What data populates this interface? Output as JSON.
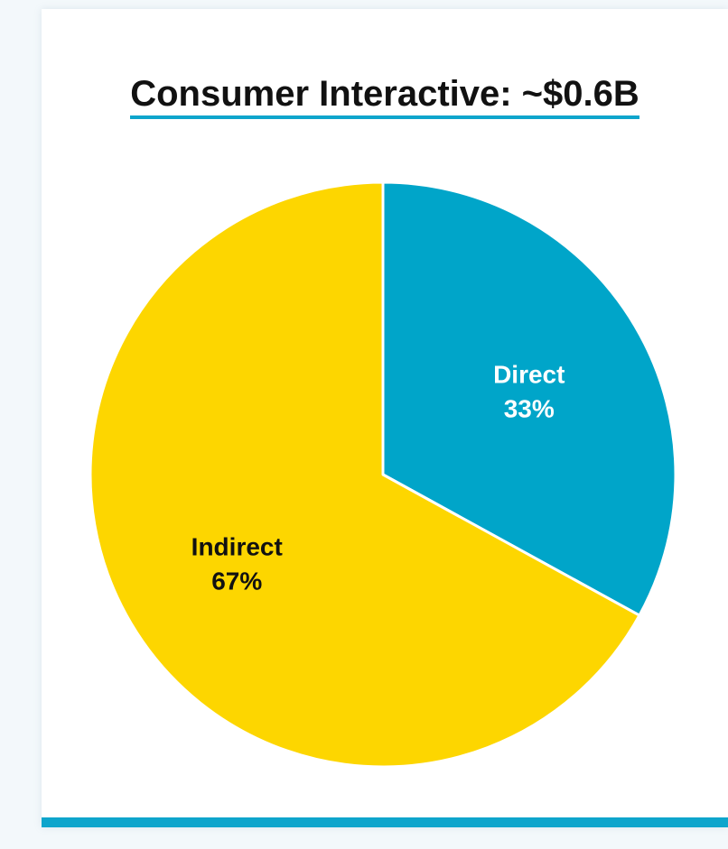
{
  "chart_data": {
    "type": "pie",
    "title": "Consumer Interactive: ~$0.6B",
    "categories": [
      "Direct",
      "Indirect"
    ],
    "values": [
      33,
      67
    ],
    "value_labels": [
      "33%",
      "67%"
    ],
    "colors": [
      "#00a5c9",
      "#fdd600"
    ],
    "label_colors": [
      "#ffffff",
      "#111111"
    ],
    "start_angle_deg": 0,
    "direction": "clockwise",
    "legend": "none"
  },
  "colors": {
    "background": "#f3f8fb",
    "card": "#ffffff",
    "accent": "#0ea5cc"
  }
}
